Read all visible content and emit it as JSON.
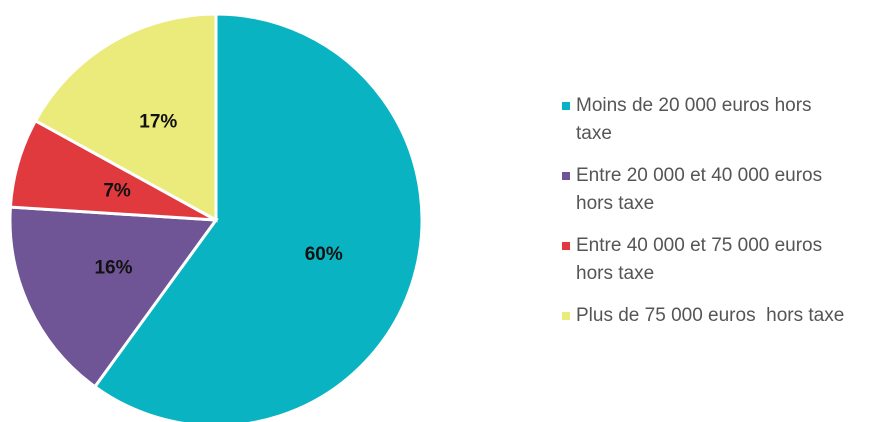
{
  "chart_data": {
    "type": "pie",
    "categories": [
      "Moins de 20 000 euros hors taxe",
      "Entre 20 000 et 40 000 euros hors taxe",
      "Entre 40 000 et 75 000 euros hors taxe",
      "Plus de 75 000 euros  hors taxe"
    ],
    "values": [
      60,
      16,
      7,
      17
    ],
    "value_labels": [
      "60%",
      "16%",
      "7%",
      "17%"
    ],
    "colors": [
      "#0ab3c2",
      "#6f5596",
      "#e0393e",
      "#ebeb7b"
    ],
    "legend": "right"
  }
}
